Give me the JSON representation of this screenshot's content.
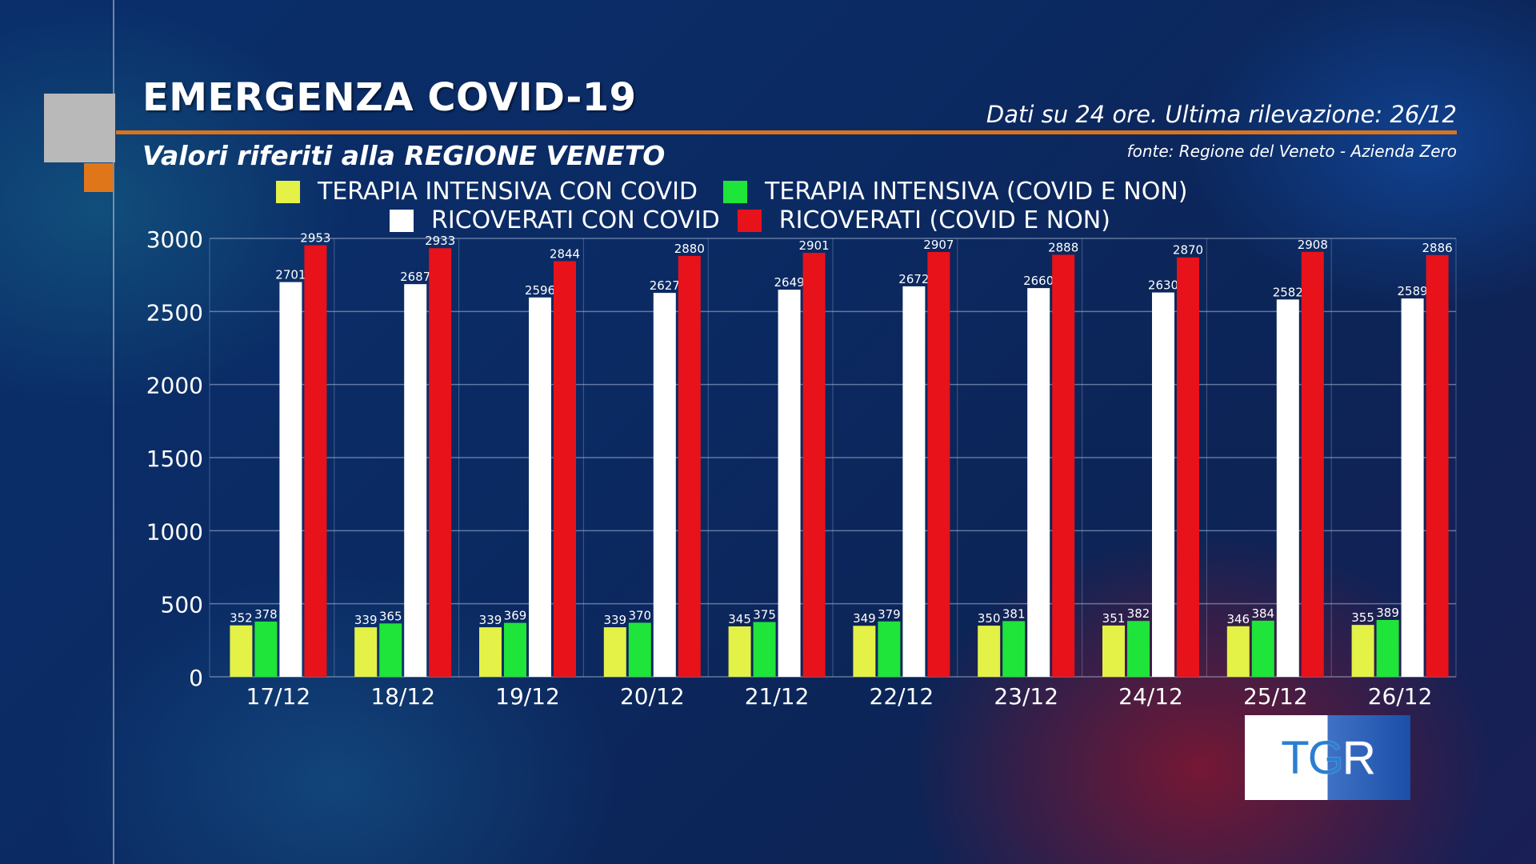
{
  "header": {
    "title": "EMERGENZA COVID-19",
    "subtitle": "Valori riferiti alla REGIONE VENETO",
    "dati": "Dati su 24 ore. Ultima rilevazione: 26/12",
    "fonte": "fonte: Regione del Veneto - Azienda Zero"
  },
  "logo": {
    "text_left": "TG",
    "text_right": "R"
  },
  "colors": {
    "terapia_covid": "#e4f146",
    "terapia_totale": "#1fe43a",
    "ricoverati_covid": "#ffffff",
    "ricoverati_totale": "#e8121a",
    "accent": "#d9731e"
  },
  "chart_data": {
    "type": "bar",
    "categories": [
      "17/12",
      "18/12",
      "19/12",
      "20/12",
      "21/12",
      "22/12",
      "23/12",
      "24/12",
      "25/12",
      "26/12"
    ],
    "series": [
      {
        "name": "TERAPIA INTENSIVA CON COVID",
        "values": [
          352,
          339,
          339,
          339,
          345,
          349,
          350,
          351,
          346,
          355
        ]
      },
      {
        "name": "TERAPIA INTENSIVA (COVID E NON)",
        "values": [
          378,
          365,
          369,
          370,
          375,
          379,
          381,
          382,
          384,
          389
        ]
      },
      {
        "name": "RICOVERATI CON COVID",
        "values": [
          2701,
          2687,
          2596,
          2627,
          2649,
          2672,
          2660,
          2630,
          2582,
          2589
        ]
      },
      {
        "name": "RICOVERATI (COVID E NON)",
        "values": [
          2953,
          2933,
          2844,
          2880,
          2901,
          2907,
          2888,
          2870,
          2908,
          2886
        ]
      }
    ],
    "y_ticks": [
      "0",
      "500",
      "1000",
      "1500",
      "2000",
      "2500",
      "3000"
    ],
    "ylim": [
      0,
      3000
    ],
    "grid": true,
    "legend_position": "top"
  }
}
